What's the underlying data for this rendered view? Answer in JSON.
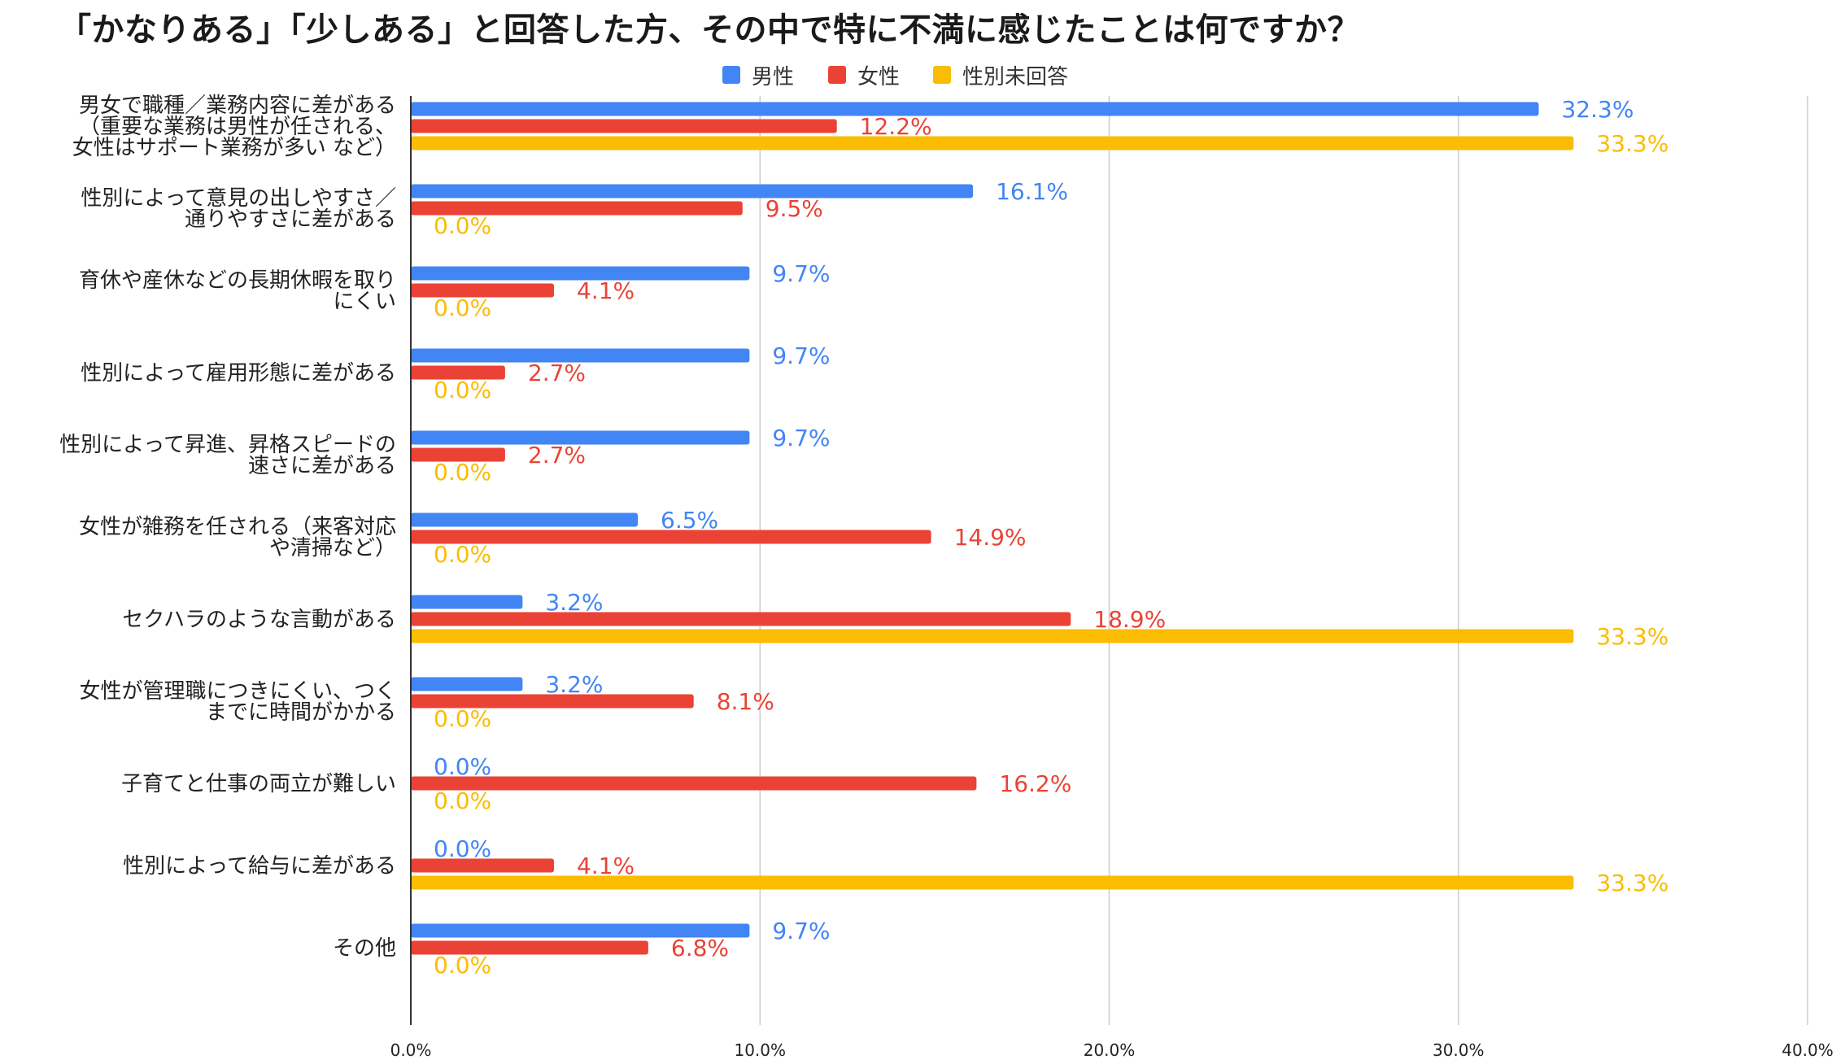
{
  "chart_data": {
    "type": "bar",
    "orientation": "horizontal",
    "title": "「かなりある」「少しある」と回答した方、その中で特に不満に感じたことは何ですか？",
    "categories": [
      [
        "男女で職種／業務内容に差がある",
        "（重要な業務は男性が任される、",
        "女性はサポート業務が多い など）"
      ],
      [
        "性別によって意見の出しやすさ／",
        "通りやすさに差がある"
      ],
      [
        "育休や産休などの長期休暇を取り",
        "にくい"
      ],
      [
        "性別によって雇用形態に差がある"
      ],
      [
        "性別によって昇進、昇格スピードの",
        "速さに差がある"
      ],
      [
        "女性が雑務を任される（来客対応",
        "や清掃など）"
      ],
      [
        "セクハラのような言動がある"
      ],
      [
        "女性が管理職につきにくい、つく",
        "までに時間がかかる"
      ],
      [
        "子育てと仕事の両立が難しい"
      ],
      [
        "性別によって給与に差がある"
      ],
      [
        "その他"
      ]
    ],
    "series": [
      {
        "name": "男性",
        "color": "#4285f4",
        "values": [
          32.3,
          16.1,
          9.7,
          9.7,
          9.7,
          6.5,
          3.2,
          3.2,
          0.0,
          0.0,
          9.7
        ],
        "labels": [
          "32.3%",
          "16.1%",
          "9.7%",
          "9.7%",
          "9.7%",
          "6.5%",
          "3.2%",
          "3.2%",
          "0.0%",
          "0.0%",
          "9.7%"
        ]
      },
      {
        "name": "女性",
        "color": "#ea4335",
        "values": [
          12.2,
          9.5,
          4.1,
          2.7,
          2.7,
          14.9,
          18.9,
          8.1,
          16.2,
          4.1,
          6.8
        ],
        "labels": [
          "12.2%",
          "9.5%",
          "4.1%",
          "2.7%",
          "2.7%",
          "14.9%",
          "18.9%",
          "8.1%",
          "16.2%",
          "4.1%",
          "6.8%"
        ]
      },
      {
        "name": "性別未回答",
        "color": "#fbbc04",
        "values": [
          33.3,
          0.0,
          0.0,
          0.0,
          0.0,
          0.0,
          33.3,
          0.0,
          0.0,
          33.3,
          0.0
        ],
        "labels": [
          "33.3%",
          "0.0%",
          "0.0%",
          "0.0%",
          "0.0%",
          "0.0%",
          "33.3%",
          "0.0%",
          "0.0%",
          "33.3%",
          "0.0%"
        ]
      }
    ],
    "xlim": [
      0,
      40
    ],
    "xticks": [
      0,
      10,
      20,
      30,
      40
    ],
    "xtick_labels": [
      "0.0%",
      "10.0%",
      "20.0%",
      "30.0%",
      "40.0%"
    ],
    "grid": true,
    "legend_position": "top-center",
    "axis_color": "#333333",
    "grid_color": "#cccccc"
  }
}
